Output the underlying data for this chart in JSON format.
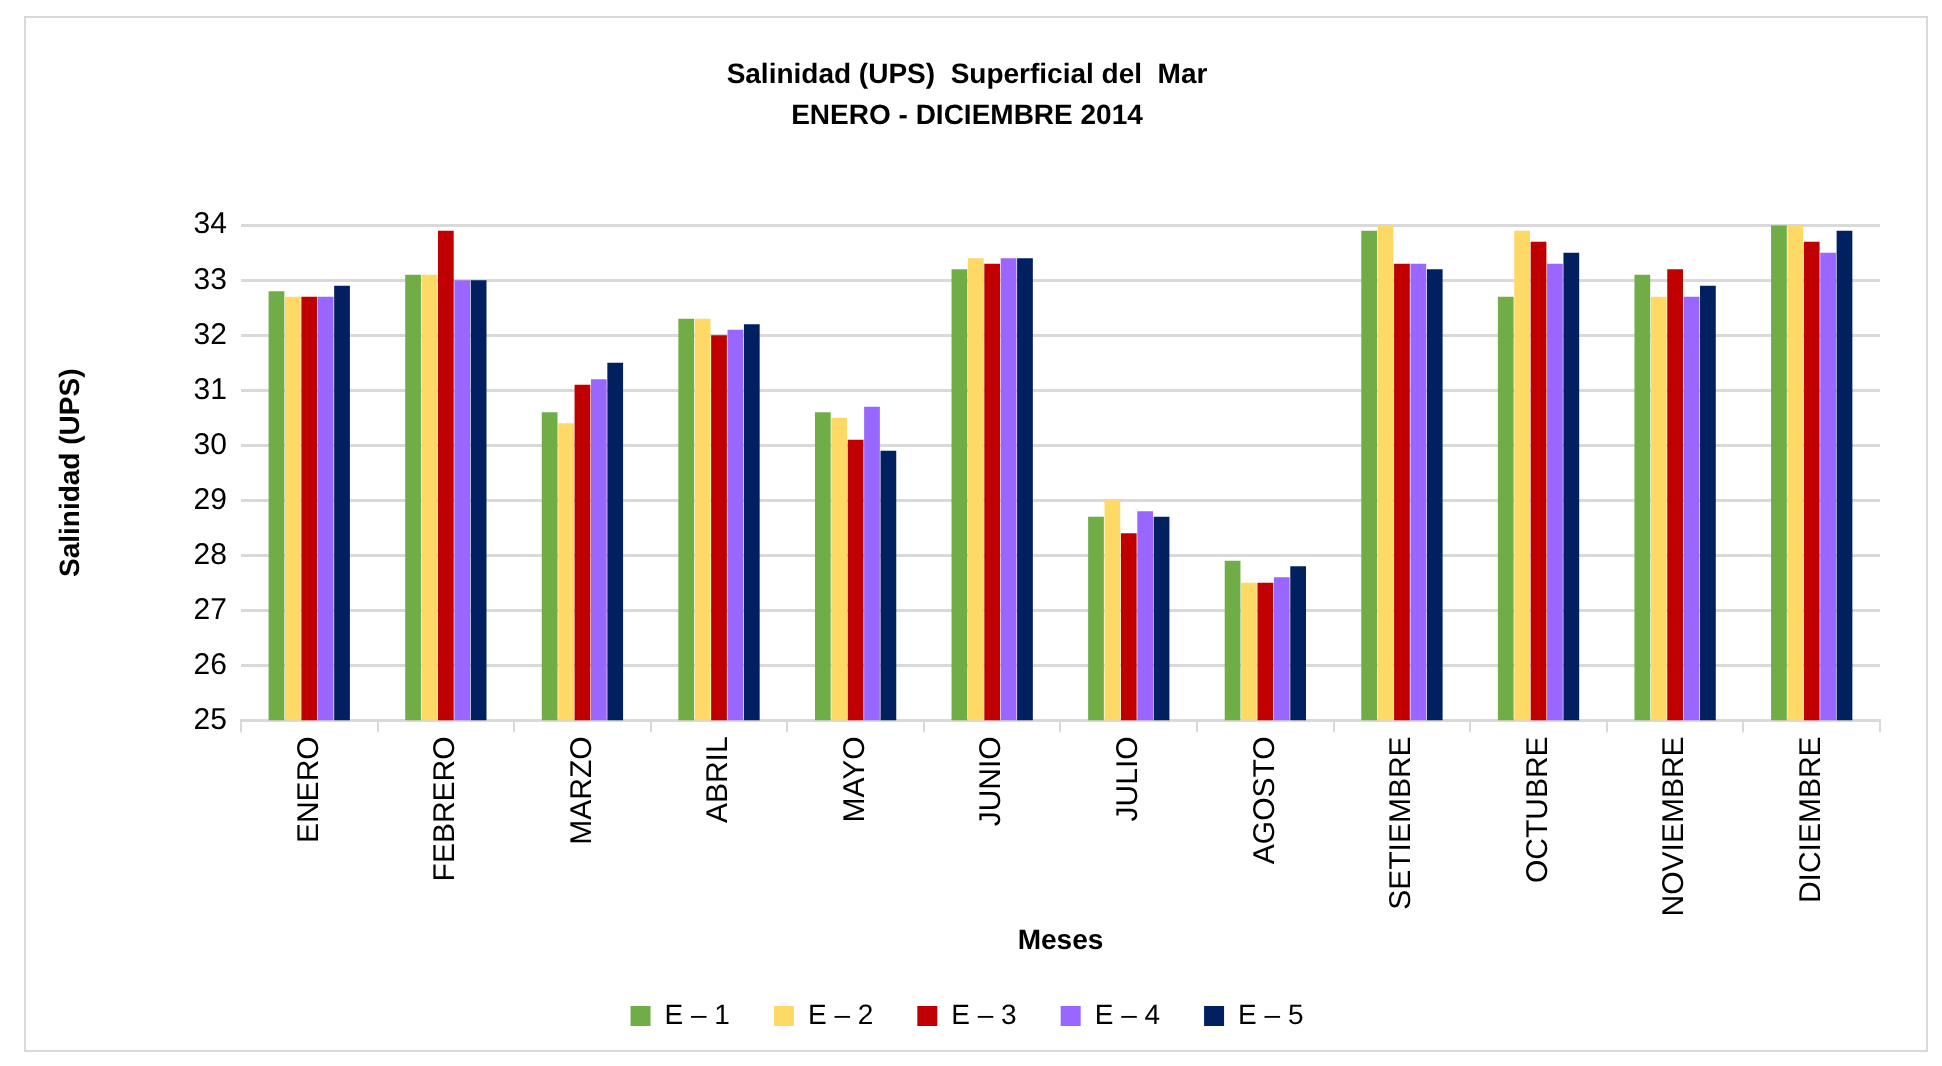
{
  "chart_data": {
    "type": "bar",
    "title": "Salinidad (UPS)  Superficial del  Mar",
    "subtitle": "ENERO - DICIEMBRE 2014",
    "xlabel": "Meses",
    "ylabel": "Salinidad (UPS)",
    "categories": [
      "ENERO",
      "FEBRERO",
      "MARZO",
      "ABRIL",
      "MAYO",
      "JUNIO",
      "JULIO",
      "AGOSTO",
      "SETIEMBRE",
      "OCTUBRE",
      "NOVIEMBRE",
      "DICIEMBRE"
    ],
    "series": [
      {
        "name": "E – 1",
        "color": "#70ad47",
        "values": [
          32.8,
          33.1,
          30.6,
          32.3,
          30.6,
          33.2,
          28.7,
          27.9,
          33.9,
          32.7,
          33.1,
          34.0
        ]
      },
      {
        "name": "E – 2",
        "color": "#ffd966",
        "values": [
          32.7,
          33.1,
          30.4,
          32.3,
          30.5,
          33.4,
          29.0,
          27.5,
          34.0,
          33.9,
          32.7,
          34.0
        ]
      },
      {
        "name": "E – 3",
        "color": "#c00000",
        "values": [
          32.7,
          33.9,
          31.1,
          32.0,
          30.1,
          33.3,
          28.4,
          27.5,
          33.3,
          33.7,
          33.2,
          33.7
        ]
      },
      {
        "name": "E – 4",
        "color": "#9966ff",
        "values": [
          32.7,
          33.0,
          31.2,
          32.1,
          30.7,
          33.4,
          28.8,
          27.6,
          33.3,
          33.3,
          32.7,
          33.5
        ]
      },
      {
        "name": "E – 5",
        "color": "#002060",
        "values": [
          32.9,
          33.0,
          31.5,
          32.2,
          29.9,
          33.4,
          28.7,
          27.8,
          33.2,
          33.5,
          32.9,
          33.9
        ]
      }
    ],
    "ylim": [
      25,
      34
    ],
    "yticks": [
      25,
      26,
      27,
      28,
      29,
      30,
      31,
      32,
      33,
      34
    ],
    "grid": "y",
    "legend": "bottom"
  }
}
